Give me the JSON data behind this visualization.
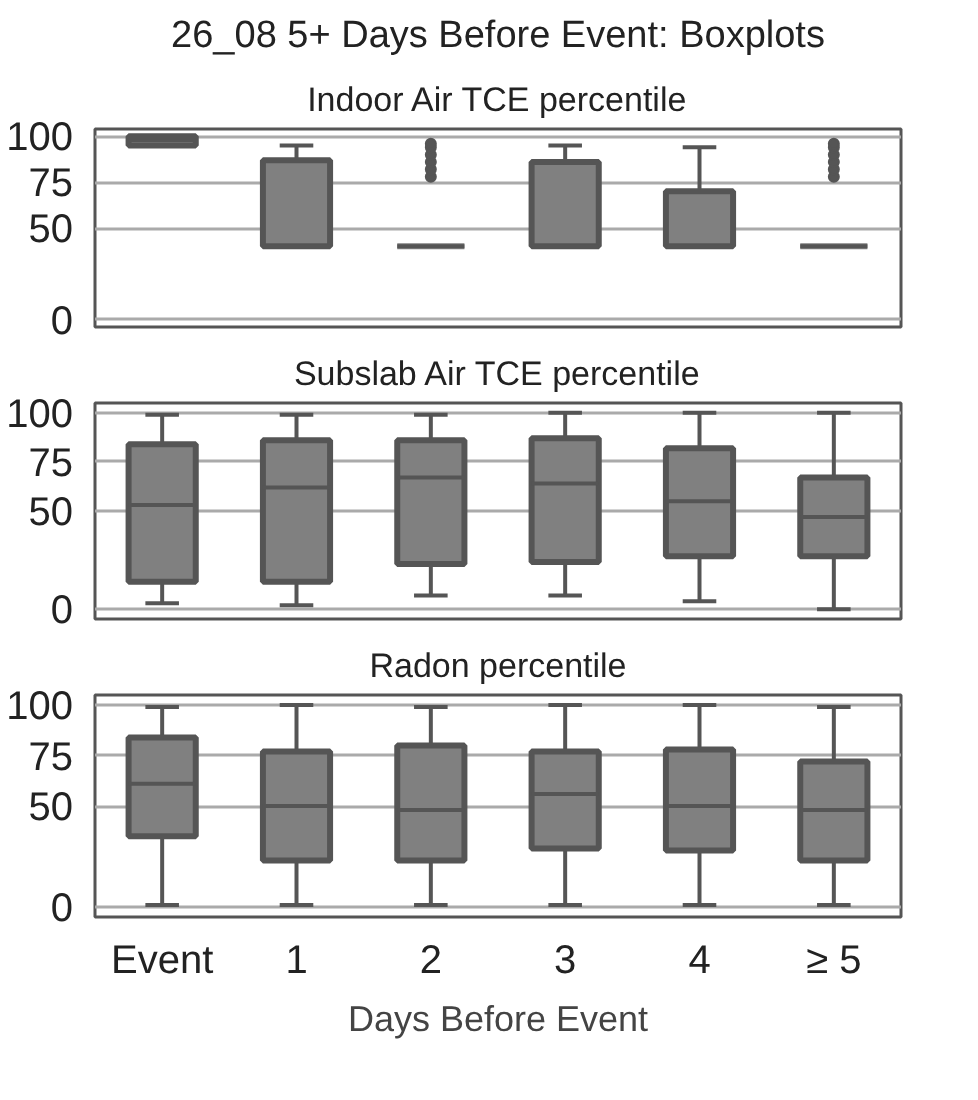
{
  "chart_data": [
    {
      "type": "box",
      "title": "26_08 5+ Days Before Event: Boxplots",
      "subtitle": "Indoor Air TCE percentile",
      "categories": [
        null,
        null,
        null,
        null,
        null,
        null
      ],
      "tick_labels": "y",
      "ylim": [
        -4,
        104
      ],
      "yticks": [
        0,
        50,
        75,
        100
      ],
      "grid": "y",
      "color": "#808080",
      "boxes": [
        {
          "low": 95,
          "q1": 95,
          "median": 98,
          "q3": 100,
          "high": 100
        },
        {
          "low": 40,
          "q1": 40,
          "median": 40,
          "q3": 87,
          "high": 95
        },
        {
          "low": 40,
          "q1": 40,
          "median": 40,
          "q3": 40,
          "high": 40,
          "outliers": [
            78,
            82,
            86,
            90,
            94,
            96
          ]
        },
        {
          "low": 40,
          "q1": 40,
          "median": 40,
          "q3": 86,
          "high": 95
        },
        {
          "low": 40,
          "q1": 40,
          "median": 40,
          "q3": 70,
          "high": 94
        },
        {
          "low": 40,
          "q1": 40,
          "median": 40,
          "q3": 40,
          "high": 40,
          "outliers": [
            78,
            82,
            86,
            90,
            94,
            96
          ]
        }
      ]
    },
    {
      "type": "box",
      "subtitle": "Subslab Air TCE percentile",
      "categories": [
        null,
        null,
        null,
        null,
        null,
        null
      ],
      "tick_labels": "y",
      "ylim": [
        -5,
        105
      ],
      "yticks": [
        0,
        50,
        75,
        100
      ],
      "grid": "y",
      "color": "#808080",
      "boxes": [
        {
          "low": 3,
          "q1": 14,
          "median": 53,
          "q3": 84,
          "high": 99
        },
        {
          "low": 2,
          "q1": 14,
          "median": 62,
          "q3": 86,
          "high": 99
        },
        {
          "low": 7,
          "q1": 23,
          "median": 67,
          "q3": 86,
          "high": 99
        },
        {
          "low": 7,
          "q1": 24,
          "median": 64,
          "q3": 87,
          "high": 100
        },
        {
          "low": 4,
          "q1": 27,
          "median": 55,
          "q3": 82,
          "high": 100
        },
        {
          "low": 0,
          "q1": 27,
          "median": 47,
          "q3": 67,
          "high": 100
        }
      ]
    },
    {
      "type": "box",
      "subtitle": "Radon percentile",
      "xlabel": "Days Before Event",
      "categories": [
        "Event",
        "1",
        "2",
        "3",
        "4",
        "≥ 5"
      ],
      "ylim": [
        -5,
        105
      ],
      "yticks": [
        0,
        50,
        75,
        100
      ],
      "grid": "y",
      "color": "#808080",
      "boxes": [
        {
          "low": 1,
          "q1": 35,
          "median": 61,
          "q3": 84,
          "high": 99
        },
        {
          "low": 1,
          "q1": 23,
          "median": 50,
          "q3": 77,
          "high": 100
        },
        {
          "low": 1,
          "q1": 23,
          "median": 48,
          "q3": 80,
          "high": 99
        },
        {
          "low": 1,
          "q1": 29,
          "median": 56,
          "q3": 77,
          "high": 100
        },
        {
          "low": 1,
          "q1": 28,
          "median": 50,
          "q3": 78,
          "high": 100
        },
        {
          "low": 1,
          "q1": 23,
          "median": 48,
          "q3": 72,
          "high": 99
        }
      ]
    }
  ]
}
